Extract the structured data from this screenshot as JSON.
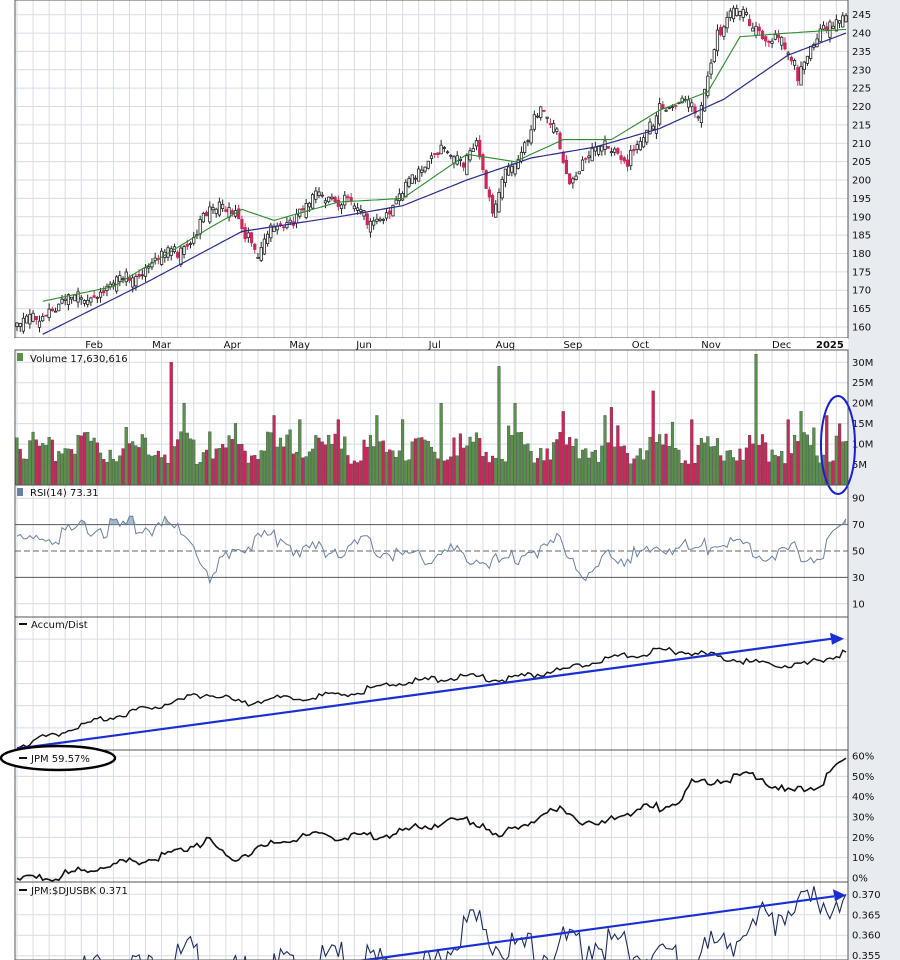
{
  "chart_data": [
    {
      "type": "candlestick",
      "panel": "price",
      "x_ticks": [
        "Feb",
        "Mar",
        "Apr",
        "May",
        "Jun",
        "Jul",
        "Aug",
        "Sep",
        "Oct",
        "Nov",
        "Dec",
        "2025"
      ],
      "y_ticks": [
        160,
        165,
        170,
        175,
        180,
        185,
        190,
        195,
        200,
        205,
        210,
        215,
        220,
        225,
        230,
        235,
        240,
        245
      ],
      "ylim": [
        157,
        249
      ],
      "close_path": [
        [
          0,
          161
        ],
        [
          10,
          166
        ],
        [
          20,
          170
        ],
        [
          30,
          172
        ],
        [
          40,
          178
        ],
        [
          50,
          182
        ],
        [
          55,
          187
        ],
        [
          60,
          192
        ],
        [
          65,
          194
        ],
        [
          68,
          194
        ],
        [
          72,
          185
        ],
        [
          75,
          180
        ],
        [
          80,
          189
        ],
        [
          88,
          191
        ],
        [
          95,
          198
        ],
        [
          102,
          195
        ],
        [
          110,
          190
        ],
        [
          118,
          194
        ],
        [
          125,
          205
        ],
        [
          132,
          210
        ],
        [
          138,
          205
        ],
        [
          143,
          213
        ],
        [
          148,
          191
        ],
        [
          152,
          202
        ],
        [
          158,
          212
        ],
        [
          163,
          220
        ],
        [
          168,
          213
        ],
        [
          172,
          201
        ],
        [
          178,
          207
        ],
        [
          185,
          211
        ],
        [
          190,
          206
        ],
        [
          195,
          211
        ],
        [
          200,
          222
        ],
        [
          208,
          222
        ],
        [
          212,
          218
        ],
        [
          218,
          242
        ],
        [
          224,
          247
        ],
        [
          230,
          243
        ],
        [
          238,
          238
        ],
        [
          243,
          230
        ],
        [
          248,
          240
        ],
        [
          255,
          243
        ],
        [
          258,
          247
        ]
      ],
      "ma_fast": [
        [
          8,
          167
        ],
        [
          30,
          171
        ],
        [
          60,
          187
        ],
        [
          70,
          192
        ],
        [
          80,
          189
        ],
        [
          100,
          194
        ],
        [
          120,
          195
        ],
        [
          140,
          207
        ],
        [
          155,
          205
        ],
        [
          170,
          211
        ],
        [
          185,
          211
        ],
        [
          200,
          219
        ],
        [
          215,
          224
        ],
        [
          225,
          239
        ],
        [
          240,
          240
        ],
        [
          258,
          241
        ]
      ],
      "ma_slow": [
        [
          8,
          158
        ],
        [
          40,
          172
        ],
        [
          70,
          186
        ],
        [
          100,
          190
        ],
        [
          120,
          193
        ],
        [
          140,
          200
        ],
        [
          160,
          206
        ],
        [
          180,
          209
        ],
        [
          200,
          214
        ],
        [
          220,
          222
        ],
        [
          240,
          234
        ],
        [
          258,
          240
        ]
      ]
    },
    {
      "type": "bar",
      "panel": "volume",
      "label": "Volume 17,630,616",
      "y_ticks": [
        "5M",
        "10M",
        "15M",
        "20M",
        "25M",
        "30M"
      ],
      "ylim": [
        0,
        33000000
      ],
      "spikes": [
        [
          48,
          30000000
        ],
        [
          52,
          20000000
        ],
        [
          60,
          13000000
        ],
        [
          80,
          17000000
        ],
        [
          88,
          16000000
        ],
        [
          100,
          16000000
        ],
        [
          112,
          17000000
        ],
        [
          120,
          16000000
        ],
        [
          132,
          20000000
        ],
        [
          150,
          29000000
        ],
        [
          155,
          20000000
        ],
        [
          170,
          18000000
        ],
        [
          183,
          17000000
        ],
        [
          185,
          19000000
        ],
        [
          198,
          23000000
        ],
        [
          210,
          16000000
        ],
        [
          230,
          32000000
        ],
        [
          240,
          16000000
        ],
        [
          244,
          18000000
        ],
        [
          248,
          14000000
        ],
        [
          252,
          17000000
        ],
        [
          256,
          15000000
        ]
      ]
    },
    {
      "type": "line",
      "panel": "rsi",
      "label": "RSI(14) 73.31",
      "y_ticks": [
        10,
        30,
        50,
        70,
        90
      ],
      "ylim": [
        0,
        100
      ],
      "values": [
        [
          0,
          58
        ],
        [
          10,
          65
        ],
        [
          20,
          70
        ],
        [
          30,
          72
        ],
        [
          40,
          74
        ],
        [
          50,
          71
        ],
        [
          55,
          62
        ],
        [
          60,
          30
        ],
        [
          66,
          55
        ],
        [
          72,
          60
        ],
        [
          80,
          66
        ],
        [
          90,
          53
        ],
        [
          100,
          56
        ],
        [
          110,
          60
        ],
        [
          120,
          48
        ],
        [
          130,
          53
        ],
        [
          140,
          50
        ],
        [
          150,
          45
        ],
        [
          160,
          56
        ],
        [
          170,
          60
        ],
        [
          178,
          35
        ],
        [
          185,
          52
        ],
        [
          195,
          48
        ],
        [
          200,
          58
        ],
        [
          210,
          55
        ],
        [
          220,
          60
        ],
        [
          230,
          53
        ],
        [
          238,
          55
        ],
        [
          245,
          52
        ],
        [
          250,
          49
        ],
        [
          256,
          68
        ],
        [
          258,
          73
        ]
      ]
    },
    {
      "type": "line",
      "panel": "accum_dist",
      "label": "Accum/Dist",
      "values": [
        [
          0,
          0
        ],
        [
          20,
          20
        ],
        [
          40,
          35
        ],
        [
          60,
          50
        ],
        [
          70,
          40
        ],
        [
          80,
          45
        ],
        [
          100,
          48
        ],
        [
          120,
          60
        ],
        [
          140,
          66
        ],
        [
          150,
          62
        ],
        [
          170,
          72
        ],
        [
          190,
          85
        ],
        [
          200,
          90
        ],
        [
          210,
          88
        ],
        [
          230,
          78
        ],
        [
          245,
          76
        ],
        [
          258,
          88
        ]
      ],
      "trend": [
        [
          0,
          0
        ],
        [
          258,
          100
        ]
      ]
    },
    {
      "type": "line",
      "panel": "performance",
      "label": "JPM 59.57%",
      "y_ticks": [
        "0%",
        "10%",
        "20%",
        "30%",
        "40%",
        "50%",
        "60%"
      ],
      "ylim": [
        -2,
        63
      ],
      "values": [
        [
          0,
          0
        ],
        [
          15,
          3
        ],
        [
          30,
          8
        ],
        [
          45,
          12
        ],
        [
          55,
          18
        ],
        [
          60,
          20
        ],
        [
          66,
          10
        ],
        [
          75,
          16
        ],
        [
          90,
          22
        ],
        [
          110,
          22
        ],
        [
          120,
          24
        ],
        [
          135,
          30
        ],
        [
          145,
          28
        ],
        [
          150,
          21
        ],
        [
          160,
          30
        ],
        [
          170,
          35
        ],
        [
          180,
          26
        ],
        [
          190,
          34
        ],
        [
          200,
          36
        ],
        [
          205,
          38
        ],
        [
          210,
          48
        ],
        [
          220,
          50
        ],
        [
          230,
          52
        ],
        [
          240,
          43
        ],
        [
          250,
          48
        ],
        [
          258,
          60
        ]
      ]
    },
    {
      "type": "line",
      "panel": "relative_strength",
      "label": "JPM:$DJUSBK 0.371",
      "y_ticks": [
        "0.355",
        "0.360",
        "0.365",
        "0.370"
      ],
      "ylim": [
        0.352,
        0.373
      ],
      "values": [
        [
          0,
          0.35
        ],
        [
          20,
          0.353
        ],
        [
          40,
          0.354
        ],
        [
          55,
          0.359
        ],
        [
          60,
          0.352
        ],
        [
          80,
          0.354
        ],
        [
          100,
          0.357
        ],
        [
          115,
          0.355
        ],
        [
          125,
          0.352
        ],
        [
          140,
          0.365
        ],
        [
          150,
          0.362
        ],
        [
          160,
          0.358
        ],
        [
          170,
          0.36
        ],
        [
          185,
          0.361
        ],
        [
          195,
          0.358
        ],
        [
          205,
          0.356
        ],
        [
          220,
          0.36
        ],
        [
          235,
          0.367
        ],
        [
          245,
          0.37
        ],
        [
          258,
          0.371
        ]
      ],
      "trend": [
        [
          90,
          0.352
        ],
        [
          258,
          0.37
        ]
      ]
    }
  ]
}
